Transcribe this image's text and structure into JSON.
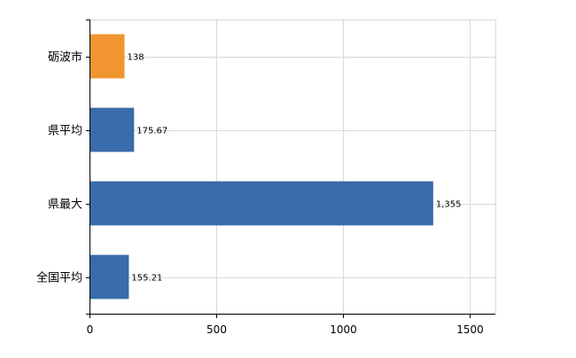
{
  "chart_data": {
    "type": "bar",
    "orientation": "horizontal",
    "categories": [
      "砺波市",
      "県平均",
      "県最大",
      "全国平均"
    ],
    "values": [
      138,
      175.67,
      1355,
      155.21
    ],
    "data_labels": [
      "138",
      "175.67",
      "1,355",
      "155.21"
    ],
    "bar_colors": [
      "#F0952F",
      "#3A6BAA",
      "#3A6BAA",
      "#3A6BAA"
    ],
    "xlim": [
      0,
      1600
    ],
    "xticks": [
      0,
      500,
      1000,
      1500
    ],
    "xtick_labels": [
      "0",
      "500",
      "1000",
      "1500"
    ],
    "grid": true,
    "legend": "none"
  }
}
